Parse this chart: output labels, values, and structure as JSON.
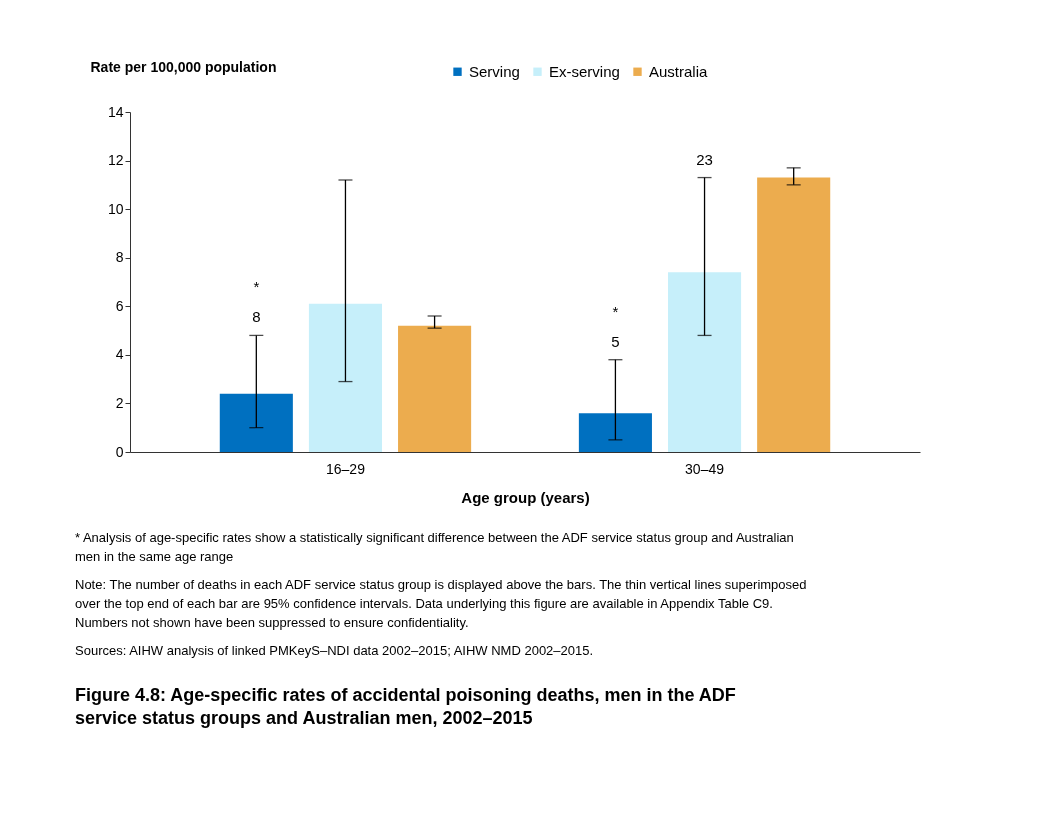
{
  "chart_data": {
    "type": "bar",
    "title": "Figure 4.8: Age-specific rates of accidental poisoning deaths, men in the ADF service status groups and Australian men, 2002–2015",
    "xlabel": "Age group (years)",
    "ylabel": "Rate per 100,000 population",
    "categories": [
      "16–29",
      "30–49"
    ],
    "series": [
      {
        "name": "Serving",
        "color": "#0070c0",
        "values": [
          2.4,
          1.6
        ],
        "errors": [
          [
            1.0,
            4.8
          ],
          [
            0.5,
            3.8
          ]
        ]
      },
      {
        "name": "Ex-serving",
        "color": "#c6effa",
        "values": [
          6.1,
          7.4
        ],
        "errors": [
          [
            2.9,
            11.2
          ],
          [
            4.8,
            11.3
          ]
        ]
      },
      {
        "name": "Australia",
        "color": "#ecac4e",
        "values": [
          5.2,
          11.3
        ],
        "errors": [
          [
            5.1,
            5.6
          ],
          [
            11.0,
            11.7
          ]
        ]
      }
    ],
    "ylim": [
      0,
      14
    ],
    "yticks": [
      0,
      2,
      4,
      6,
      8,
      10,
      12,
      14
    ],
    "grid": false,
    "legend": "top",
    "annotations": [
      "8",
      "*",
      "5",
      "*",
      "23",
      "* Analysis of age-specific rates show a statistically significant difference between the ADF service status group and Australian men in the same age range",
      "Note: The number of deaths in each ADF service status group is displayed above the bars. The thin vertical lines superimposed over the top end of each bar are 95% confidence intervals. Data underlying this figure are available in Appendix Table C9. Numbers not shown have been suppressed to ensure confidentiality.",
      "Sources: AIHW analysis of linked PMKeyS–NDI data 2002–2015; AIHW NMD 2002–2015."
    ]
  }
}
